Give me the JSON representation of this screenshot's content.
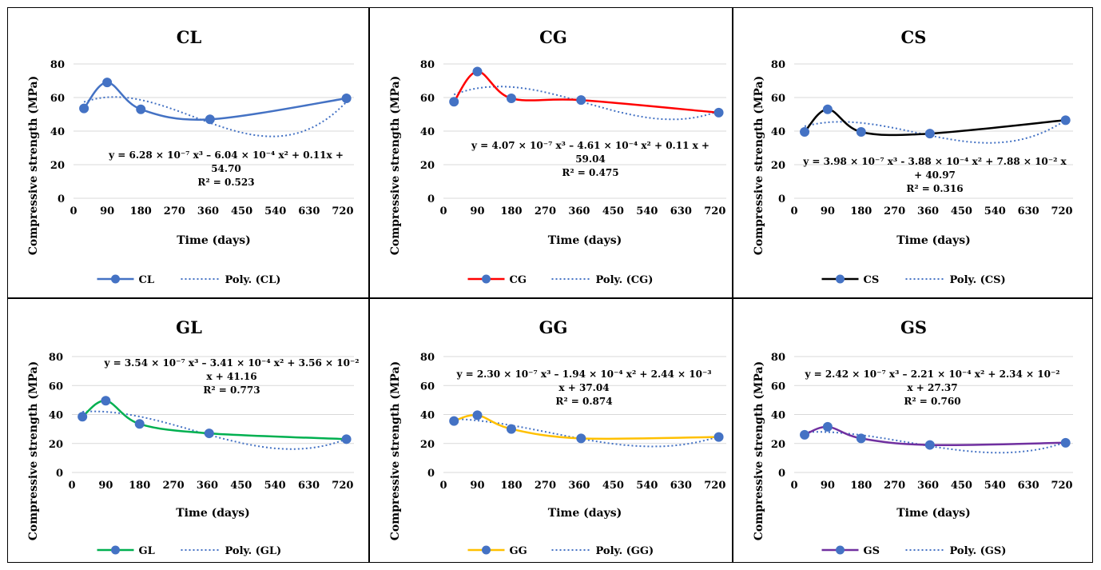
{
  "chart_data": [
    {
      "type": "line",
      "title": "CL",
      "xlabel": "Time (days)",
      "ylabel": "Compressive strength (MPa)",
      "xlim": [
        0,
        750
      ],
      "ylim": [
        0,
        80
      ],
      "xticks": [
        0,
        90,
        180,
        270,
        360,
        450,
        540,
        630,
        720
      ],
      "yticks": [
        0,
        20,
        40,
        60,
        80
      ],
      "color": "#4472C4",
      "series": [
        {
          "name": "CL",
          "x": [
            28,
            90,
            180,
            365,
            730
          ],
          "y": [
            53.5,
            69.0,
            53.0,
            47.0,
            59.5
          ]
        }
      ],
      "trendline": {
        "name": "Poly. (CL)",
        "coefficients": [
          54.7,
          0.11,
          -0.000604,
          6.28e-07
        ],
        "color": "#4472C4"
      },
      "equation_lines": [
        "y = 6.28 × 10⁻⁷ x³ – 6.04 × 10⁻⁴ x² + 0.11x +",
        "54.70",
        "R² = 0.523"
      ],
      "legend_position": "bottom"
    },
    {
      "type": "line",
      "title": "CG",
      "xlabel": "Time (days)",
      "ylabel": "Compressive strength (MPa)",
      "xlim": [
        0,
        750
      ],
      "ylim": [
        0,
        80
      ],
      "xticks": [
        0,
        90,
        180,
        270,
        360,
        450,
        540,
        630,
        720
      ],
      "yticks": [
        0,
        20,
        40,
        60,
        80
      ],
      "color": "#FF0000",
      "series": [
        {
          "name": "CG",
          "x": [
            28,
            90,
            180,
            365,
            730
          ],
          "y": [
            57.5,
            75.5,
            59.5,
            58.5,
            51.0
          ]
        }
      ],
      "trendline": {
        "name": "Poly. (CG)",
        "coefficients": [
          59.04,
          0.11,
          -0.000461,
          4.07e-07
        ],
        "color": "#4472C4"
      },
      "equation_lines": [
        "y = 4.07 × 10⁻⁷ x³ – 4.61 × 10⁻⁴ x² + 0.11 x +",
        "59.04",
        "R² = 0.475"
      ],
      "legend_position": "bottom"
    },
    {
      "type": "line",
      "title": "CS",
      "xlabel": "Time (days)",
      "ylabel": "Compressive strength (MPa)",
      "xlim": [
        0,
        750
      ],
      "ylim": [
        0,
        80
      ],
      "xticks": [
        0,
        90,
        180,
        270,
        360,
        450,
        540,
        630,
        720
      ],
      "yticks": [
        0,
        20,
        40,
        60,
        80
      ],
      "color": "#000000",
      "series": [
        {
          "name": "CS",
          "x": [
            28,
            90,
            180,
            365,
            730
          ],
          "y": [
            39.5,
            53.0,
            39.5,
            38.5,
            46.5
          ]
        }
      ],
      "trendline": {
        "name": "Poly. (CS)",
        "coefficients": [
          40.97,
          0.0788,
          -0.000388,
          3.98e-07
        ],
        "color": "#4472C4"
      },
      "equation_lines": [
        "y = 3.98 × 10⁻⁷ x³ - 3.88 × 10⁻⁴ x² + 7.88 × 10⁻² x",
        "+ 40.97",
        "R² = 0.316"
      ],
      "legend_position": "bottom"
    },
    {
      "type": "line",
      "title": "GL",
      "xlabel": "Time (days)",
      "ylabel": "Compressive strength (MPa)",
      "xlim": [
        0,
        750
      ],
      "ylim": [
        0,
        80
      ],
      "xticks": [
        0,
        90,
        180,
        270,
        360,
        450,
        540,
        630,
        720
      ],
      "yticks": [
        0,
        20,
        40,
        60,
        80
      ],
      "color": "#00B050",
      "series": [
        {
          "name": "GL",
          "x": [
            28,
            90,
            180,
            365,
            730
          ],
          "y": [
            38.5,
            49.5,
            33.5,
            27.0,
            23.0
          ]
        }
      ],
      "trendline": {
        "name": "Poly. (GL)",
        "coefficients": [
          41.16,
          0.0356,
          -0.000341,
          3.54e-07
        ],
        "color": "#4472C4"
      },
      "equation_lines": [
        "y = 3.54 × 10⁻⁷ x³ – 3.41 × 10⁻⁴ x² + 3.56 × 10⁻²",
        "x + 41.16",
        "R² = 0.773"
      ],
      "legend_position": "bottom"
    },
    {
      "type": "line",
      "title": "GG",
      "xlabel": "Time (days)",
      "ylabel": "Compressive strength (MPa)",
      "xlim": [
        0,
        750
      ],
      "ylim": [
        0,
        80
      ],
      "xticks": [
        0,
        90,
        180,
        270,
        360,
        450,
        540,
        630,
        720
      ],
      "yticks": [
        0,
        20,
        40,
        60,
        80
      ],
      "color": "#FFC000",
      "series": [
        {
          "name": "GG",
          "x": [
            28,
            90,
            180,
            365,
            730
          ],
          "y": [
            35.5,
            39.5,
            30.0,
            23.5,
            24.5
          ]
        }
      ],
      "trendline": {
        "name": "Poly. (GG)",
        "coefficients": [
          37.04,
          0.00244,
          -0.000194,
          2.3e-07
        ],
        "color": "#4472C4"
      },
      "equation_lines": [
        "y = 2.30 × 10⁻⁷ x³ – 1.94 × 10⁻⁴ x² + 2.44 × 10⁻³",
        "x + 37.04",
        "R² = 0.874"
      ],
      "legend_position": "bottom"
    },
    {
      "type": "line",
      "title": "GS",
      "xlabel": "Time (days)",
      "ylabel": "Compressive strength (MPa)",
      "xlim": [
        0,
        750
      ],
      "ylim": [
        0,
        80
      ],
      "xticks": [
        0,
        90,
        180,
        270,
        360,
        450,
        540,
        630,
        720
      ],
      "yticks": [
        0,
        20,
        40,
        60,
        80
      ],
      "color": "#7030A0",
      "series": [
        {
          "name": "GS",
          "x": [
            28,
            90,
            180,
            365,
            730
          ],
          "y": [
            26.0,
            31.5,
            23.5,
            19.0,
            20.5
          ]
        }
      ],
      "trendline": {
        "name": "Poly. (GS)",
        "coefficients": [
          27.37,
          0.0234,
          -0.000221,
          2.42e-07
        ],
        "color": "#4472C4"
      },
      "equation_lines": [
        "y = 2.42 × 10⁻⁷ x³ – 2.21 × 10⁻⁴ x² + 2.34 × 10⁻²",
        "x + 27.37",
        "R² = 0.760"
      ],
      "legend_position": "bottom"
    }
  ]
}
